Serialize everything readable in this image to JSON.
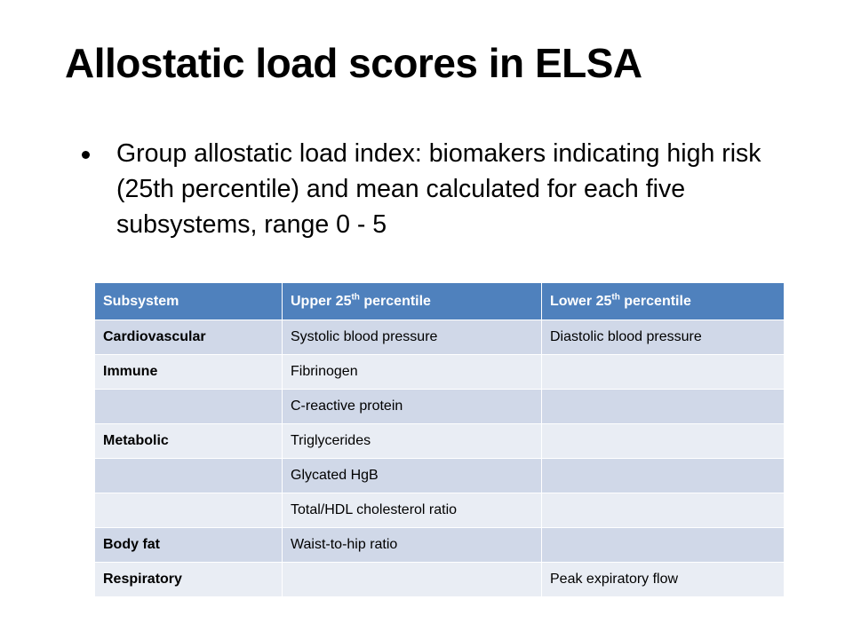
{
  "slide": {
    "title": "Allostatic load scores in ELSA",
    "bullet": "Group allostatic load index: biomakers indicating high risk (25th percentile) and mean calculated for each five subsystems, range 0 - 5"
  },
  "table": {
    "headers": {
      "subsystem": "Subsystem",
      "upper_prefix": "Upper 25",
      "upper_sup": "th",
      "upper_suffix": " percentile",
      "lower_prefix": "Lower 25",
      "lower_sup": "th",
      "lower_suffix": " percentile"
    },
    "rows": [
      {
        "subsystem": "Cardiovascular",
        "upper": "Systolic blood pressure",
        "lower": "Diastolic blood pressure"
      },
      {
        "subsystem": "Immune",
        "upper": "Fibrinogen",
        "lower": ""
      },
      {
        "subsystem": "",
        "upper": "C-reactive protein",
        "lower": ""
      },
      {
        "subsystem": "Metabolic",
        "upper": "Triglycerides",
        "lower": ""
      },
      {
        "subsystem": "",
        "upper": "Glycated HgB",
        "lower": ""
      },
      {
        "subsystem": "",
        "upper": "Total/HDL cholesterol ratio",
        "lower": ""
      },
      {
        "subsystem": "Body fat",
        "upper": "Waist-to-hip ratio",
        "lower": ""
      },
      {
        "subsystem": "Respiratory",
        "upper": "",
        "lower": "Peak expiratory flow"
      }
    ]
  }
}
